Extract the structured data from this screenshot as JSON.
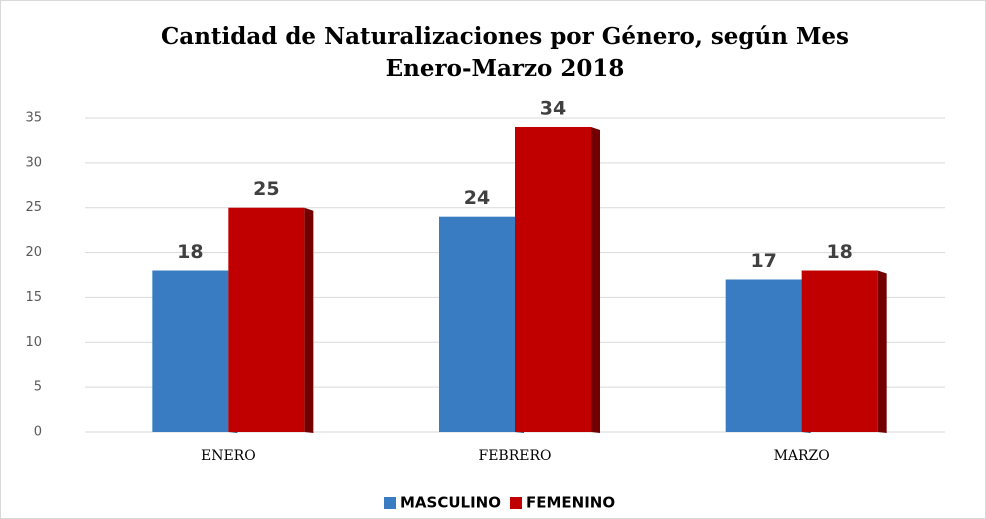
{
  "chart_data": {
    "type": "bar",
    "title": "Cantidad de Naturalizaciones por Género, según Mes",
    "subtitle": "Enero-Marzo 2018",
    "categories": [
      "ENERO",
      "FEBRERO",
      "MARZO"
    ],
    "series": [
      {
        "name": "MASCULINO",
        "color": "#3a7cc1",
        "values": [
          18,
          24,
          17
        ]
      },
      {
        "name": "FEMENINO",
        "color": "#c00000",
        "values": [
          25,
          34,
          18
        ]
      }
    ],
    "ylim": [
      0,
      35
    ],
    "yticks": [
      0,
      5,
      10,
      15,
      20,
      25,
      30,
      35
    ],
    "grid": true,
    "legend": "bottom"
  }
}
